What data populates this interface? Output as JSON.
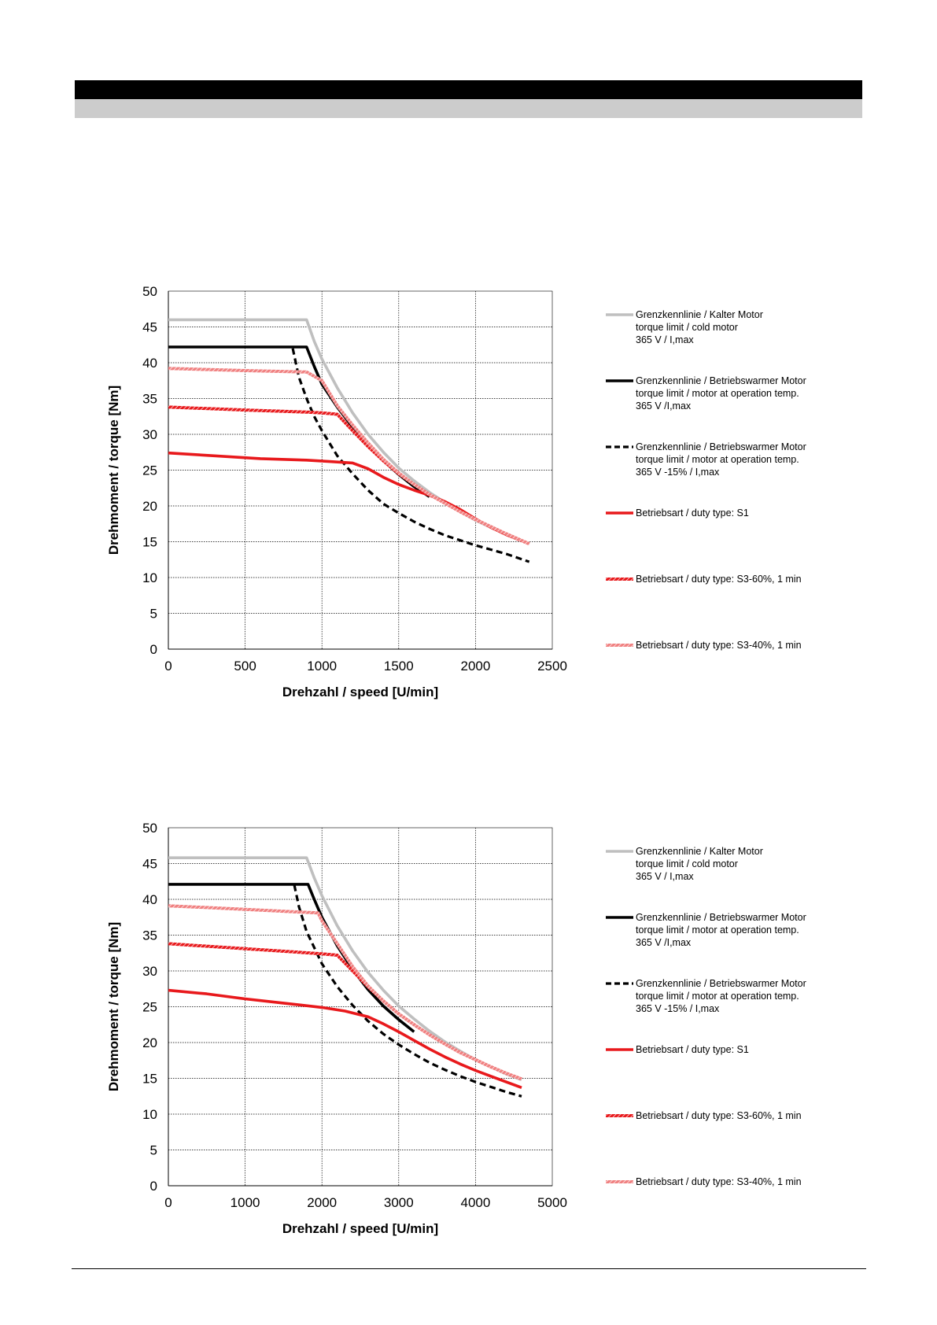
{
  "chart_data": [
    {
      "type": "line",
      "xlabel": "Drehzahl / speed [U/min]",
      "ylabel": "Drehmoment / torque [Nm]",
      "xlim": [
        0,
        2500
      ],
      "ylim": [
        0,
        50
      ],
      "xticks": [
        0,
        500,
        1000,
        1500,
        2000,
        2500
      ],
      "yticks": [
        0,
        5,
        10,
        15,
        20,
        25,
        30,
        35,
        40,
        45,
        50
      ],
      "grid": true,
      "legend_position": "right",
      "series": [
        {
          "legend": [
            "Grenzkennlinie / Kalter Motor",
            "torque limit / cold  motor",
            "365 V / I,max"
          ],
          "color": "#bfbfbf",
          "style": "solid",
          "points": [
            [
              0,
              46
            ],
            [
              900,
              46
            ],
            [
              950,
              43
            ],
            [
              1000,
              40.5
            ],
            [
              1100,
              36.5
            ],
            [
              1200,
              33
            ],
            [
              1300,
              30
            ],
            [
              1400,
              27.5
            ],
            [
              1500,
              25.3
            ],
            [
              1600,
              23.5
            ],
            [
              1700,
              21.9
            ],
            [
              1800,
              20.5
            ],
            [
              1900,
              19.2
            ],
            [
              2000,
              18
            ],
            [
              2100,
              17
            ],
            [
              2200,
              16
            ],
            [
              2350,
              14.7
            ]
          ]
        },
        {
          "legend": [
            "Grenzkennlinie / Betriebswarmer Motor",
            "torque limit / motor at operation temp.",
            "365 V /I,max"
          ],
          "color": "#000000",
          "style": "solid",
          "points": [
            [
              0,
              42.2
            ],
            [
              900,
              42.2
            ],
            [
              950,
              39.5
            ],
            [
              1000,
              37
            ],
            [
              1100,
              33.8
            ],
            [
              1200,
              31
            ],
            [
              1300,
              28.5
            ],
            [
              1400,
              26.3
            ],
            [
              1500,
              24.4
            ],
            [
              1600,
              22.7
            ],
            [
              1700,
              21.3
            ]
          ]
        },
        {
          "legend": [
            "Grenzkennlinie / Betriebswarmer Motor",
            "torque limit / motor at operation temp.",
            "365 V  -15% / I,max"
          ],
          "color": "#000000",
          "style": "dashed",
          "points": [
            [
              810,
              42
            ],
            [
              850,
              38
            ],
            [
              900,
              35
            ],
            [
              950,
              32.5
            ],
            [
              1000,
              30.5
            ],
            [
              1100,
              27
            ],
            [
              1200,
              24.5
            ],
            [
              1300,
              22.2
            ],
            [
              1400,
              20.3
            ],
            [
              1500,
              19
            ],
            [
              1600,
              17.8
            ],
            [
              1700,
              16.8
            ],
            [
              1800,
              15.9
            ],
            [
              1900,
              15.2
            ],
            [
              2000,
              14.5
            ],
            [
              2100,
              13.9
            ],
            [
              2200,
              13.3
            ],
            [
              2350,
              12.2
            ]
          ]
        },
        {
          "legend": [
            "Betriebsart / duty type: S1"
          ],
          "color": "#e8191c",
          "style": "solid",
          "points": [
            [
              0,
              27.4
            ],
            [
              300,
              27
            ],
            [
              600,
              26.6
            ],
            [
              900,
              26.4
            ],
            [
              1050,
              26.2
            ],
            [
              1200,
              26
            ],
            [
              1300,
              25.2
            ],
            [
              1400,
              24
            ],
            [
              1500,
              23
            ],
            [
              1600,
              22.2
            ],
            [
              1700,
              21.5
            ],
            [
              1800,
              20.6
            ],
            [
              1900,
              19.5
            ],
            [
              2000,
              18.2
            ],
            [
              2100,
              17
            ],
            [
              2200,
              16
            ],
            [
              2350,
              14.7
            ]
          ]
        },
        {
          "legend": [
            "Betriebsart / duty type: S3-60%, 1 min"
          ],
          "color": "#e8191c",
          "style": "hatched",
          "points": [
            [
              0,
              33.8
            ],
            [
              500,
              33.4
            ],
            [
              900,
              33.1
            ],
            [
              1000,
              33
            ],
            [
              1100,
              32.8
            ],
            [
              1200,
              30.5
            ],
            [
              1300,
              28.3
            ],
            [
              1400,
              26.3
            ],
            [
              1500,
              24.5
            ],
            [
              1600,
              23
            ],
            [
              1700,
              21.6
            ],
            [
              1800,
              20.4
            ],
            [
              1900,
              19.2
            ],
            [
              2000,
              18.1
            ],
            [
              2100,
              17.1
            ],
            [
              2200,
              16.1
            ],
            [
              2350,
              14.7
            ]
          ]
        },
        {
          "legend": [
            "Betriebsart / duty type: S3-40%, 1 min"
          ],
          "color": "#f08080",
          "style": "hatched",
          "points": [
            [
              0,
              39.2
            ],
            [
              500,
              38.9
            ],
            [
              900,
              38.7
            ],
            [
              1000,
              37.5
            ],
            [
              1100,
              34
            ],
            [
              1200,
              31.3
            ],
            [
              1300,
              28.8
            ],
            [
              1400,
              26.5
            ],
            [
              1500,
              24.6
            ],
            [
              1600,
              23
            ],
            [
              1700,
              21.6
            ],
            [
              1800,
              20.4
            ],
            [
              1900,
              19.2
            ],
            [
              2000,
              18.1
            ],
            [
              2100,
              17.1
            ],
            [
              2200,
              16.1
            ],
            [
              2350,
              14.7
            ]
          ]
        }
      ]
    },
    {
      "type": "line",
      "xlabel": "Drehzahl / speed [U/min]",
      "ylabel": "Drehmoment / torque [Nm]",
      "xlim": [
        0,
        5000
      ],
      "ylim": [
        0,
        50
      ],
      "xticks": [
        0,
        1000,
        2000,
        3000,
        4000,
        5000
      ],
      "yticks": [
        0,
        5,
        10,
        15,
        20,
        25,
        30,
        35,
        40,
        45,
        50
      ],
      "grid": true,
      "legend_position": "right",
      "series": [
        {
          "legend": [
            "Grenzkennlinie / Kalter Motor",
            "torque limit / cold  motor",
            "365 V / I,max"
          ],
          "color": "#bfbfbf",
          "style": "solid",
          "points": [
            [
              0,
              45.8
            ],
            [
              1800,
              45.8
            ],
            [
              1900,
              43
            ],
            [
              2000,
              40.5
            ],
            [
              2200,
              36.3
            ],
            [
              2400,
              32.8
            ],
            [
              2600,
              29.8
            ],
            [
              2800,
              27.3
            ],
            [
              3000,
              25.1
            ],
            [
              3200,
              23.3
            ],
            [
              3400,
              21.6
            ],
            [
              3600,
              20.1
            ],
            [
              3800,
              18.8
            ],
            [
              4000,
              17.6
            ],
            [
              4200,
              16.6
            ],
            [
              4400,
              15.6
            ],
            [
              4600,
              14.8
            ]
          ]
        },
        {
          "legend": [
            "Grenzkennlinie / Betriebswarmer Motor",
            "torque limit / motor at operation temp.",
            "365 V /I,max"
          ],
          "color": "#000000",
          "style": "solid",
          "points": [
            [
              0,
              42.1
            ],
            [
              1820,
              42.1
            ],
            [
              1900,
              40
            ],
            [
              2000,
              37.5
            ],
            [
              2200,
              33.5
            ],
            [
              2400,
              30.2
            ],
            [
              2600,
              27.4
            ],
            [
              2800,
              25.1
            ],
            [
              3000,
              23.2
            ],
            [
              3200,
              21.5
            ]
          ]
        },
        {
          "legend": [
            "Grenzkennlinie / Betriebswarmer Motor",
            "torque limit / motor at operation temp.",
            "365 V  -15% / I,max"
          ],
          "color": "#000000",
          "style": "dashed",
          "points": [
            [
              1640,
              42
            ],
            [
              1700,
              39
            ],
            [
              1800,
              35.5
            ],
            [
              2000,
              31
            ],
            [
              2200,
              27.8
            ],
            [
              2400,
              25.2
            ],
            [
              2600,
              23
            ],
            [
              2800,
              21.2
            ],
            [
              3000,
              19.7
            ],
            [
              3200,
              18.4
            ],
            [
              3400,
              17.2
            ],
            [
              3600,
              16.2
            ],
            [
              3800,
              15.3
            ],
            [
              4000,
              14.5
            ],
            [
              4200,
              13.8
            ],
            [
              4400,
              13.1
            ],
            [
              4600,
              12.5
            ]
          ]
        },
        {
          "legend": [
            "Betriebsart / duty type: S1"
          ],
          "color": "#e8191c",
          "style": "solid",
          "points": [
            [
              0,
              27.3
            ],
            [
              500,
              26.8
            ],
            [
              1000,
              26.1
            ],
            [
              1500,
              25.5
            ],
            [
              2000,
              24.9
            ],
            [
              2300,
              24.4
            ],
            [
              2600,
              23.6
            ],
            [
              2800,
              22.6
            ],
            [
              3000,
              21.5
            ],
            [
              3200,
              20.3
            ],
            [
              3400,
              19.1
            ],
            [
              3600,
              18
            ],
            [
              3800,
              17
            ],
            [
              4000,
              16.1
            ],
            [
              4200,
              15.3
            ],
            [
              4400,
              14.5
            ],
            [
              4600,
              13.7
            ]
          ]
        },
        {
          "legend": [
            "Betriebsart / duty type: S3-60%, 1 min"
          ],
          "color": "#e8191c",
          "style": "hatched",
          "points": [
            [
              0,
              33.8
            ],
            [
              1000,
              33.1
            ],
            [
              2000,
              32.4
            ],
            [
              2200,
              32.2
            ],
            [
              2400,
              30
            ],
            [
              2600,
              27.8
            ],
            [
              2800,
              25.8
            ],
            [
              3000,
              24
            ],
            [
              3200,
              22.5
            ],
            [
              3400,
              21.1
            ],
            [
              3600,
              19.8
            ],
            [
              3800,
              18.6
            ],
            [
              4000,
              17.6
            ],
            [
              4200,
              16.6
            ],
            [
              4400,
              15.7
            ],
            [
              4600,
              14.9
            ]
          ]
        },
        {
          "legend": [
            "Betriebsart / duty type: S3-40%, 1 min"
          ],
          "color": "#f08080",
          "style": "hatched",
          "points": [
            [
              0,
              39.1
            ],
            [
              1000,
              38.6
            ],
            [
              1950,
              38.1
            ],
            [
              2000,
              37
            ],
            [
              2200,
              33.8
            ],
            [
              2400,
              30.6
            ],
            [
              2600,
              27.9
            ],
            [
              2800,
              25.8
            ],
            [
              3000,
              24
            ],
            [
              3200,
              22.5
            ],
            [
              3400,
              21.1
            ],
            [
              3600,
              19.8
            ],
            [
              3800,
              18.6
            ],
            [
              4000,
              17.6
            ],
            [
              4200,
              16.6
            ],
            [
              4400,
              15.7
            ],
            [
              4600,
              14.9
            ]
          ]
        }
      ]
    }
  ]
}
